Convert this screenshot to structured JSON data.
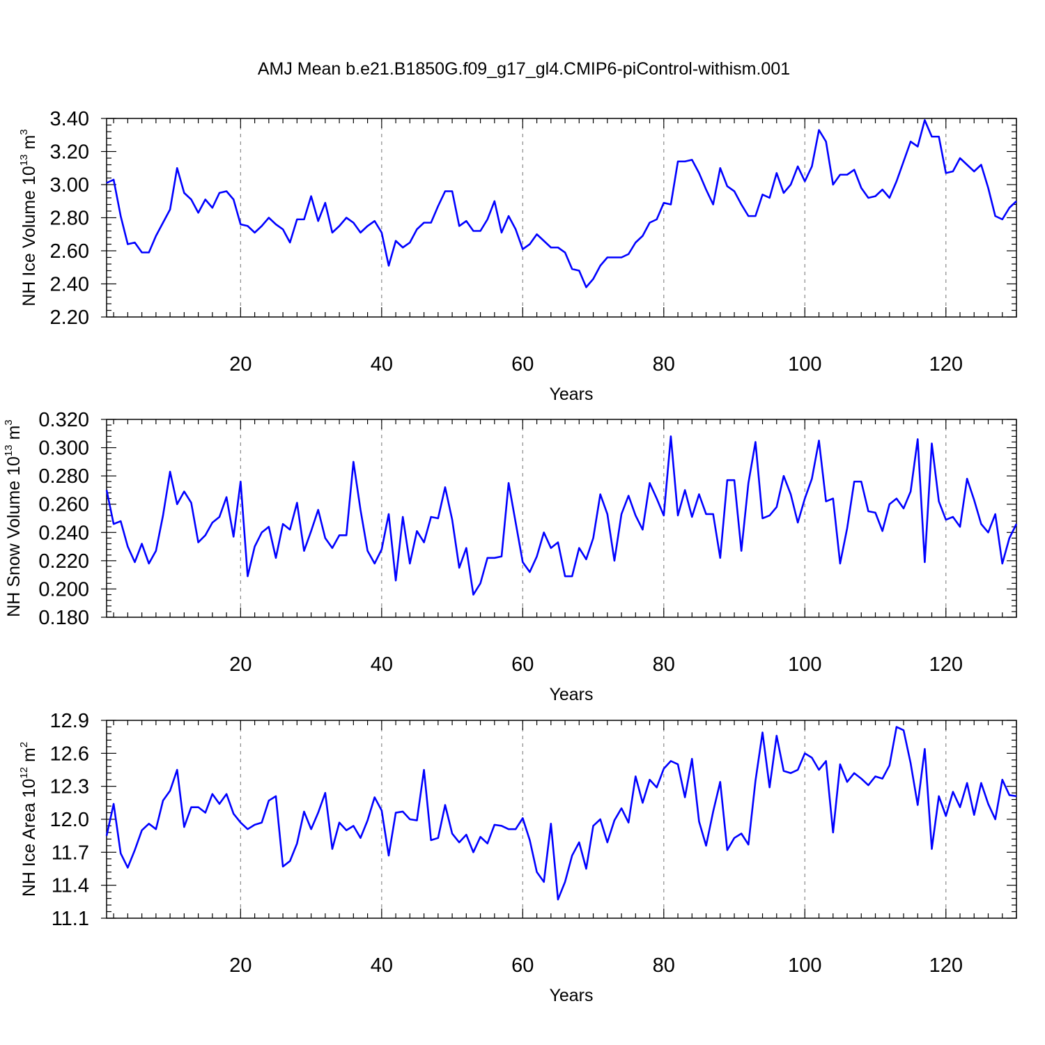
{
  "title": "AMJ Mean b.e21.B1850G.f09_g17_gl4.CMIP6-piControl-withism.001",
  "chart_data": [
    {
      "type": "line",
      "ylabel_main": "NH Ice Volume 10",
      "ylabel_exp": "13",
      "ylabel_unit": " m",
      "ylabel_unit_exp": "3",
      "xlabel": "Years",
      "xlim": [
        1,
        130
      ],
      "ylim": [
        2.2,
        3.4
      ],
      "yticks": [
        "2.20",
        "2.40",
        "2.60",
        "2.80",
        "3.00",
        "3.20",
        "3.40"
      ],
      "xticks": [
        "20",
        "40",
        "60",
        "80",
        "100",
        "120"
      ],
      "grid": "vertical dashed at major x ticks",
      "line_color": "#0000ff",
      "x_start": 1,
      "values": [
        3.01,
        3.03,
        2.81,
        2.64,
        2.65,
        2.59,
        2.59,
        2.69,
        2.77,
        2.85,
        3.1,
        2.95,
        2.91,
        2.83,
        2.91,
        2.86,
        2.95,
        2.96,
        2.91,
        2.76,
        2.75,
        2.71,
        2.75,
        2.8,
        2.76,
        2.73,
        2.65,
        2.79,
        2.79,
        2.93,
        2.78,
        2.89,
        2.71,
        2.75,
        2.8,
        2.77,
        2.71,
        2.75,
        2.78,
        2.71,
        2.51,
        2.66,
        2.62,
        2.65,
        2.73,
        2.77,
        2.77,
        2.87,
        2.96,
        2.96,
        2.75,
        2.78,
        2.72,
        2.72,
        2.79,
        2.9,
        2.71,
        2.81,
        2.73,
        2.61,
        2.64,
        2.7,
        2.66,
        2.62,
        2.62,
        2.59,
        2.49,
        2.48,
        2.38,
        2.43,
        2.51,
        2.56,
        2.56,
        2.56,
        2.58,
        2.65,
        2.69,
        2.77,
        2.79,
        2.89,
        2.88,
        3.14,
        3.14,
        3.15,
        3.07,
        2.97,
        2.88,
        3.1,
        2.99,
        2.96,
        2.88,
        2.81,
        2.81,
        2.94,
        2.92,
        3.07,
        2.95,
        3.0,
        3.11,
        3.02,
        3.11,
        3.33,
        3.26,
        3.0,
        3.06,
        3.06,
        3.09,
        2.98,
        2.92,
        2.93,
        2.97,
        2.92,
        3.02,
        3.14,
        3.26,
        3.23,
        3.39,
        3.29,
        3.29,
        3.07,
        3.08,
        3.16,
        3.12,
        3.08,
        3.12,
        2.98,
        2.81,
        2.79,
        2.86,
        2.9
      ]
    },
    {
      "type": "line",
      "ylabel_main": "NH Snow Volume 10",
      "ylabel_exp": "13",
      "ylabel_unit": " m",
      "ylabel_unit_exp": "3",
      "xlabel": "Years",
      "xlim": [
        1,
        130
      ],
      "ylim": [
        0.18,
        0.32
      ],
      "yticks": [
        "0.180",
        "0.200",
        "0.220",
        "0.240",
        "0.260",
        "0.280",
        "0.300",
        "0.320"
      ],
      "xticks": [
        "20",
        "40",
        "60",
        "80",
        "100",
        "120"
      ],
      "grid": "vertical dashed at major x ticks",
      "line_color": "#0000ff",
      "x_start": 1,
      "values": [
        0.27,
        0.246,
        0.248,
        0.23,
        0.219,
        0.232,
        0.218,
        0.227,
        0.252,
        0.283,
        0.26,
        0.269,
        0.261,
        0.233,
        0.238,
        0.247,
        0.251,
        0.265,
        0.237,
        0.276,
        0.209,
        0.23,
        0.24,
        0.244,
        0.222,
        0.246,
        0.242,
        0.261,
        0.227,
        0.241,
        0.256,
        0.236,
        0.229,
        0.238,
        0.238,
        0.29,
        0.256,
        0.227,
        0.218,
        0.228,
        0.253,
        0.206,
        0.251,
        0.218,
        0.241,
        0.233,
        0.251,
        0.25,
        0.272,
        0.249,
        0.215,
        0.229,
        0.196,
        0.204,
        0.222,
        0.222,
        0.223,
        0.275,
        0.247,
        0.219,
        0.212,
        0.223,
        0.24,
        0.229,
        0.233,
        0.209,
        0.209,
        0.229,
        0.221,
        0.236,
        0.267,
        0.253,
        0.22,
        0.253,
        0.266,
        0.252,
        0.242,
        0.275,
        0.264,
        0.252,
        0.308,
        0.252,
        0.27,
        0.251,
        0.267,
        0.253,
        0.253,
        0.222,
        0.277,
        0.277,
        0.227,
        0.275,
        0.304,
        0.25,
        0.252,
        0.258,
        0.28,
        0.267,
        0.247,
        0.264,
        0.278,
        0.305,
        0.262,
        0.264,
        0.218,
        0.243,
        0.276,
        0.276,
        0.255,
        0.254,
        0.241,
        0.26,
        0.264,
        0.257,
        0.269,
        0.306,
        0.219,
        0.303,
        0.262,
        0.249,
        0.251,
        0.244,
        0.278,
        0.263,
        0.246,
        0.24,
        0.253,
        0.218,
        0.236,
        0.246
      ]
    },
    {
      "type": "line",
      "ylabel_main": "NH Ice Area 10",
      "ylabel_exp": "12",
      "ylabel_unit": " m",
      "ylabel_unit_exp": "2",
      "xlabel": "Years",
      "xlim": [
        1,
        130
      ],
      "ylim": [
        11.1,
        12.9
      ],
      "yticks": [
        "11.1",
        "11.4",
        "11.7",
        "12.0",
        "12.3",
        "12.6",
        "12.9"
      ],
      "xticks": [
        "20",
        "40",
        "60",
        "80",
        "100",
        "120"
      ],
      "grid": "vertical dashed at major x ticks",
      "line_color": "#0000ff",
      "x_start": 1,
      "values": [
        11.85,
        12.14,
        11.69,
        11.56,
        11.72,
        11.9,
        11.96,
        11.91,
        12.17,
        12.26,
        12.45,
        11.93,
        12.11,
        12.11,
        12.06,
        12.23,
        12.14,
        12.23,
        12.05,
        11.97,
        11.91,
        11.95,
        11.97,
        12.17,
        12.21,
        11.57,
        11.62,
        11.78,
        12.07,
        11.91,
        12.06,
        12.24,
        11.73,
        11.97,
        11.9,
        11.94,
        11.83,
        11.99,
        12.2,
        12.08,
        11.67,
        12.06,
        12.07,
        12.0,
        11.99,
        12.45,
        11.81,
        11.83,
        12.13,
        11.87,
        11.79,
        11.86,
        11.7,
        11.84,
        11.78,
        11.95,
        11.94,
        11.91,
        11.91,
        12.01,
        11.81,
        11.52,
        11.43,
        11.96,
        11.27,
        11.43,
        11.67,
        11.79,
        11.55,
        11.94,
        12.0,
        11.79,
        11.99,
        12.1,
        11.97,
        12.39,
        12.15,
        12.36,
        12.29,
        12.46,
        12.53,
        12.5,
        12.2,
        12.55,
        11.98,
        11.76,
        12.07,
        12.34,
        11.72,
        11.83,
        11.87,
        11.77,
        12.35,
        12.79,
        12.29,
        12.76,
        12.44,
        12.42,
        12.45,
        12.6,
        12.56,
        12.45,
        12.53,
        11.88,
        12.5,
        12.34,
        12.42,
        12.37,
        12.31,
        12.39,
        12.37,
        12.49,
        12.84,
        12.81,
        12.51,
        12.13,
        12.64,
        11.73,
        12.21,
        12.03,
        12.25,
        12.11,
        12.33,
        12.04,
        12.33,
        12.14,
        12.0,
        12.36,
        12.22,
        12.21
      ]
    }
  ]
}
